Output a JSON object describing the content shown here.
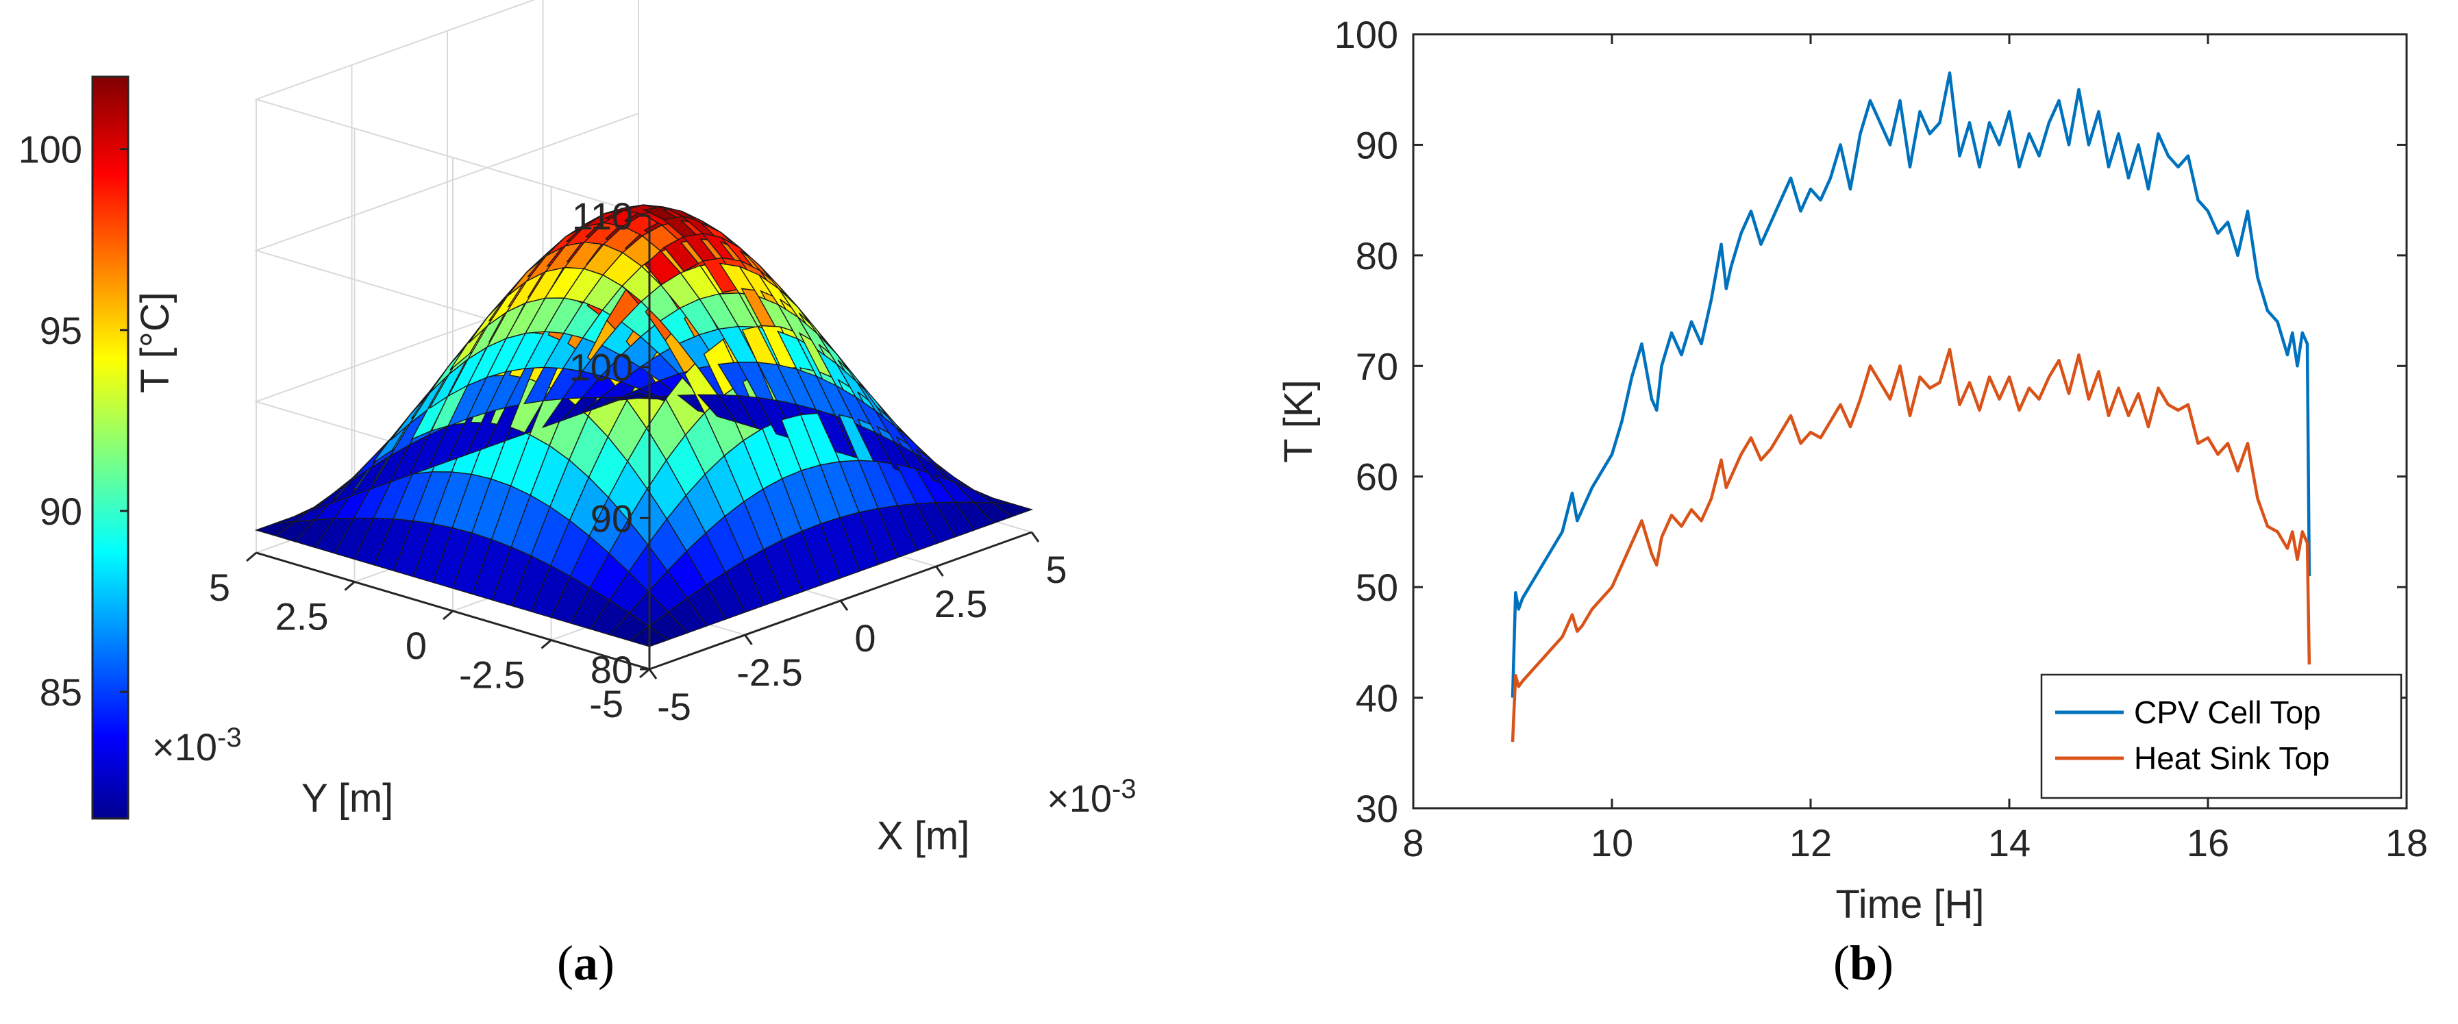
{
  "captions": {
    "a_letter": "a",
    "b_letter": "b",
    "open": "(",
    "close": ")"
  },
  "chart_data": [
    {
      "type": "surface3d",
      "id": "a",
      "title": "",
      "xlabel": "X [m]",
      "ylabel": "Y [m]",
      "zlabel": "",
      "x_ticks": [
        "-5",
        "-2.5",
        "0",
        "2.5",
        "5"
      ],
      "y_ticks": [
        "5",
        "2.5",
        "0",
        "-2.5",
        "-5"
      ],
      "z_ticks": [
        "80",
        "90",
        "100",
        "110"
      ],
      "xlim": [
        -0.005,
        0.005
      ],
      "ylim": [
        -0.005,
        0.005
      ],
      "zlim": [
        80,
        110
      ],
      "x_exponent": "×10",
      "y_exponent": "×10",
      "exponent_power": "-3",
      "surface": {
        "peak_temperature": 102,
        "edge_temperature": 81.5,
        "corner_temperature": 81.5,
        "grid": 20
      },
      "colorbar": {
        "label": "T [°C]",
        "ticks": [
          "85",
          "90",
          "95",
          "100"
        ],
        "range": [
          81.5,
          102
        ],
        "colormap": "jet"
      }
    },
    {
      "type": "line",
      "id": "b",
      "title": "",
      "xlabel": "Time [H]",
      "ylabel": "T [K]",
      "xlim": [
        8,
        18
      ],
      "ylim": [
        30,
        100
      ],
      "x_ticks": [
        "8",
        "10",
        "12",
        "14",
        "16",
        "18"
      ],
      "y_ticks": [
        "30",
        "40",
        "50",
        "60",
        "70",
        "80",
        "90",
        "100"
      ],
      "legend_position": "bottom-right",
      "series": [
        {
          "name": "CPV Cell Top",
          "color": "#0072BD",
          "x": [
            9.0,
            9.03,
            9.06,
            9.1,
            9.2,
            9.3,
            9.4,
            9.5,
            9.6,
            9.65,
            9.7,
            9.8,
            9.9,
            10.0,
            10.1,
            10.2,
            10.3,
            10.4,
            10.45,
            10.5,
            10.6,
            10.7,
            10.8,
            10.9,
            11.0,
            11.1,
            11.15,
            11.2,
            11.3,
            11.4,
            11.5,
            11.6,
            11.7,
            11.8,
            11.9,
            12.0,
            12.1,
            12.2,
            12.3,
            12.4,
            12.5,
            12.6,
            12.7,
            12.8,
            12.9,
            13.0,
            13.1,
            13.2,
            13.3,
            13.4,
            13.5,
            13.6,
            13.7,
            13.8,
            13.9,
            14.0,
            14.1,
            14.2,
            14.3,
            14.4,
            14.5,
            14.6,
            14.7,
            14.8,
            14.9,
            15.0,
            15.1,
            15.2,
            15.3,
            15.4,
            15.5,
            15.6,
            15.7,
            15.8,
            15.9,
            16.0,
            16.1,
            16.2,
            16.3,
            16.4,
            16.5,
            16.6,
            16.7,
            16.8,
            16.85,
            16.9,
            16.95,
            17.0,
            17.02
          ],
          "values": [
            40,
            49.5,
            48,
            49,
            50.5,
            52,
            53.5,
            55,
            58.5,
            56,
            57,
            59,
            60.5,
            62,
            65,
            69,
            72,
            67,
            66,
            70,
            73,
            71,
            74,
            72,
            76,
            81,
            77,
            79,
            82,
            84,
            81,
            83,
            85,
            87,
            84,
            86,
            85,
            87,
            90,
            86,
            91,
            94,
            92,
            90,
            94,
            88,
            93,
            91,
            92,
            96.5,
            89,
            92,
            88,
            92,
            90,
            93,
            88,
            91,
            89,
            92,
            94,
            90,
            95,
            90,
            93,
            88,
            91,
            87,
            90,
            86,
            91,
            89,
            88,
            89,
            85,
            84,
            82,
            83,
            80,
            84,
            78,
            75,
            74,
            71,
            73,
            70,
            73,
            72,
            51
          ]
        },
        {
          "name": "Heat Sink Top",
          "color": "#D95319",
          "x": [
            9.0,
            9.03,
            9.06,
            9.1,
            9.2,
            9.3,
            9.4,
            9.5,
            9.6,
            9.65,
            9.7,
            9.8,
            9.9,
            10.0,
            10.1,
            10.2,
            10.3,
            10.4,
            10.45,
            10.5,
            10.6,
            10.7,
            10.8,
            10.9,
            11.0,
            11.1,
            11.15,
            11.2,
            11.3,
            11.4,
            11.5,
            11.6,
            11.7,
            11.8,
            11.9,
            12.0,
            12.1,
            12.2,
            12.3,
            12.4,
            12.5,
            12.6,
            12.7,
            12.8,
            12.9,
            13.0,
            13.1,
            13.2,
            13.3,
            13.4,
            13.5,
            13.6,
            13.7,
            13.8,
            13.9,
            14.0,
            14.1,
            14.2,
            14.3,
            14.4,
            14.5,
            14.6,
            14.7,
            14.8,
            14.9,
            15.0,
            15.1,
            15.2,
            15.3,
            15.4,
            15.5,
            15.6,
            15.7,
            15.8,
            15.9,
            16.0,
            16.1,
            16.2,
            16.3,
            16.4,
            16.5,
            16.6,
            16.7,
            16.8,
            16.85,
            16.9,
            16.95,
            17.0,
            17.02
          ],
          "values": [
            36,
            42,
            41,
            41.5,
            42.5,
            43.5,
            44.5,
            45.5,
            47.5,
            46,
            46.5,
            48,
            49,
            50,
            52,
            54,
            56,
            53,
            52,
            54.5,
            56.5,
            55.5,
            57,
            56,
            58,
            61.5,
            59,
            60,
            62,
            63.5,
            61.5,
            62.5,
            64,
            65.5,
            63,
            64,
            63.5,
            65,
            66.5,
            64.5,
            67,
            70,
            68.5,
            67,
            70,
            65.5,
            69,
            68,
            68.5,
            71.5,
            66.5,
            68.5,
            66,
            69,
            67,
            69,
            66,
            68,
            67,
            69,
            70.5,
            67.5,
            71,
            67,
            69.5,
            65.5,
            68,
            65.5,
            67.5,
            64.5,
            68,
            66.5,
            66,
            66.5,
            63,
            63.5,
            62,
            63,
            60.5,
            63,
            58,
            55.5,
            55,
            53.5,
            55,
            52.5,
            55,
            54,
            43
          ]
        }
      ]
    }
  ]
}
